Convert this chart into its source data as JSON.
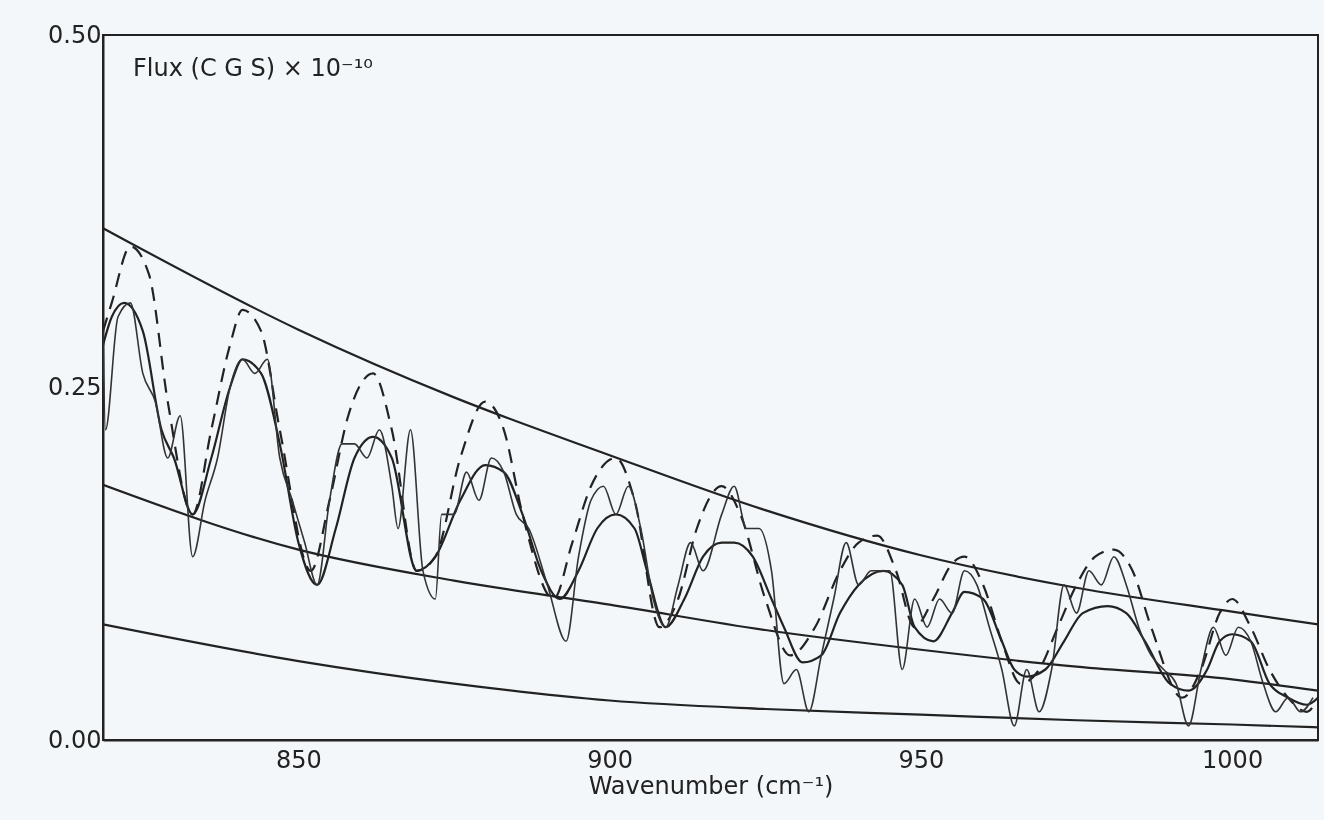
{
  "chart_data": {
    "type": "line",
    "ylabel": "Flux (C G S) × 10⁻¹⁰",
    "xlabel": "Wavenumber (cm⁻¹)",
    "xlim": [
      818.6,
      1013.8
    ],
    "ylim": [
      0,
      0.5
    ],
    "xticks": [
      850,
      900,
      950,
      1000
    ],
    "yticks": [
      {
        "value": 0,
        "label": "0.00"
      },
      {
        "value": 0.25,
        "label": "0.25"
      },
      {
        "value": 0.5,
        "label": "0.50"
      }
    ],
    "grid": false,
    "marker": "none",
    "series": [
      {
        "color": "#222222",
        "line_style": "solid",
        "x": [
          818.6,
          850,
          875,
          900,
          925,
          950,
          975,
          1000,
          1013.8
        ],
        "values": [
          0.363,
          0.291,
          0.243,
          0.202,
          0.163,
          0.131,
          0.108,
          0.091,
          0.082
        ]
      },
      {
        "color": "#222222",
        "line_style": "solid",
        "x": [
          818.6,
          850,
          875,
          900,
          925,
          950,
          975,
          1000,
          1013.8
        ],
        "values": [
          0.181,
          0.135,
          0.113,
          0.096,
          0.078,
          0.064,
          0.052,
          0.043,
          0.035
        ]
      },
      {
        "color": "#222222",
        "line_style": "solid",
        "x": [
          818.6,
          850,
          875,
          900,
          925,
          950,
          975,
          1000,
          1013.8
        ],
        "values": [
          0.082,
          0.056,
          0.04,
          0.028,
          0.022,
          0.018,
          0.014,
          0.011,
          0.009
        ]
      },
      {
        "color": "#222222",
        "line_style": "dashed",
        "x": [
          818.6,
          820,
          823,
          826,
          829,
          833,
          836,
          839,
          841,
          844,
          847,
          852,
          855,
          858,
          862,
          865,
          869,
          872,
          876,
          880,
          883,
          886,
          891,
          894,
          897,
          901,
          904,
          908,
          911,
          914,
          918,
          921,
          925,
          929,
          933,
          937,
          940,
          943,
          946,
          949,
          952,
          955,
          957,
          960,
          963,
          966,
          969,
          972,
          975,
          978,
          981,
          984,
          987,
          992,
          995,
          998,
          1000,
          1003,
          1006,
          1009,
          1012,
          1013.8
        ],
        "values": [
          0.29,
          0.31,
          0.35,
          0.33,
          0.24,
          0.16,
          0.22,
          0.28,
          0.305,
          0.29,
          0.22,
          0.12,
          0.17,
          0.23,
          0.26,
          0.22,
          0.12,
          0.13,
          0.2,
          0.24,
          0.22,
          0.16,
          0.1,
          0.14,
          0.18,
          0.2,
          0.17,
          0.08,
          0.1,
          0.15,
          0.18,
          0.16,
          0.1,
          0.06,
          0.08,
          0.12,
          0.14,
          0.145,
          0.12,
          0.08,
          0.1,
          0.125,
          0.13,
          0.11,
          0.07,
          0.04,
          0.05,
          0.08,
          0.11,
          0.13,
          0.135,
          0.12,
          0.08,
          0.03,
          0.05,
          0.09,
          0.1,
          0.08,
          0.05,
          0.03,
          0.02,
          0.03
        ]
      },
      {
        "color": "#222222",
        "line_style": "solid",
        "x": [
          818.6,
          820,
          822,
          825,
          828,
          830,
          833,
          836,
          839,
          841,
          844,
          847,
          850,
          853,
          856,
          859,
          862,
          865,
          869,
          872,
          876,
          880,
          883,
          886,
          889,
          892,
          895,
          898,
          901,
          904,
          906,
          909,
          912,
          915,
          918,
          920,
          923,
          926,
          928,
          931,
          934,
          937,
          940,
          944,
          947,
          949,
          952,
          955,
          957,
          960,
          963,
          965,
          967,
          970,
          973,
          976,
          980,
          983,
          986,
          990,
          993,
          996,
          998,
          1000,
          1003,
          1006,
          1009,
          1012,
          1013.8
        ],
        "values": [
          0.28,
          0.3,
          0.31,
          0.29,
          0.22,
          0.2,
          0.16,
          0.2,
          0.25,
          0.27,
          0.26,
          0.21,
          0.14,
          0.11,
          0.15,
          0.2,
          0.215,
          0.2,
          0.12,
          0.13,
          0.17,
          0.195,
          0.19,
          0.16,
          0.12,
          0.1,
          0.12,
          0.15,
          0.16,
          0.15,
          0.12,
          0.08,
          0.1,
          0.13,
          0.14,
          0.14,
          0.13,
          0.1,
          0.08,
          0.055,
          0.06,
          0.09,
          0.11,
          0.12,
          0.11,
          0.08,
          0.07,
          0.09,
          0.105,
          0.1,
          0.07,
          0.05,
          0.045,
          0.05,
          0.07,
          0.09,
          0.095,
          0.09,
          0.07,
          0.04,
          0.035,
          0.05,
          0.07,
          0.075,
          0.07,
          0.04,
          0.03,
          0.025,
          0.03
        ]
      },
      {
        "color": "#333333",
        "line_style": "solid",
        "x": [
          818.6,
          819,
          821,
          823,
          825,
          827,
          829,
          831,
          833,
          835,
          837,
          839,
          841,
          843,
          845,
          847,
          849,
          851,
          853,
          855,
          857,
          859,
          861,
          863,
          865,
          866,
          868,
          870,
          872,
          873,
          875,
          877,
          879,
          881,
          883,
          885,
          887,
          890,
          893,
          895,
          897,
          899,
          901,
          903,
          905,
          907,
          909,
          911,
          913,
          915,
          918,
          920,
          922,
          924,
          926,
          928,
          930,
          932,
          934,
          936,
          938,
          940,
          942,
          945,
          947,
          949,
          951,
          953,
          955,
          957,
          959,
          961,
          963,
          965,
          967,
          969,
          971,
          973,
          975,
          977,
          979,
          981,
          983,
          985,
          987,
          989,
          991,
          993,
          995,
          997,
          999,
          1001,
          1003,
          1005,
          1007,
          1009,
          1011,
          1013
        ],
        "values": [
          0.29,
          0.22,
          0.3,
          0.31,
          0.26,
          0.24,
          0.2,
          0.23,
          0.13,
          0.17,
          0.2,
          0.25,
          0.27,
          0.26,
          0.27,
          0.2,
          0.17,
          0.14,
          0.11,
          0.17,
          0.21,
          0.21,
          0.2,
          0.22,
          0.18,
          0.15,
          0.22,
          0.12,
          0.1,
          0.16,
          0.16,
          0.19,
          0.17,
          0.2,
          0.19,
          0.16,
          0.15,
          0.11,
          0.07,
          0.13,
          0.17,
          0.18,
          0.16,
          0.18,
          0.15,
          0.1,
          0.08,
          0.11,
          0.14,
          0.12,
          0.16,
          0.18,
          0.15,
          0.15,
          0.12,
          0.04,
          0.05,
          0.02,
          0.06,
          0.1,
          0.14,
          0.11,
          0.12,
          0.12,
          0.05,
          0.1,
          0.08,
          0.1,
          0.09,
          0.12,
          0.11,
          0.08,
          0.05,
          0.01,
          0.05,
          0.02,
          0.05,
          0.11,
          0.09,
          0.12,
          0.11,
          0.13,
          0.11,
          0.08,
          0.06,
          0.05,
          0.04,
          0.01,
          0.05,
          0.08,
          0.06,
          0.08,
          0.07,
          0.04,
          0.02,
          0.03,
          0.02,
          0.03
        ]
      }
    ]
  }
}
